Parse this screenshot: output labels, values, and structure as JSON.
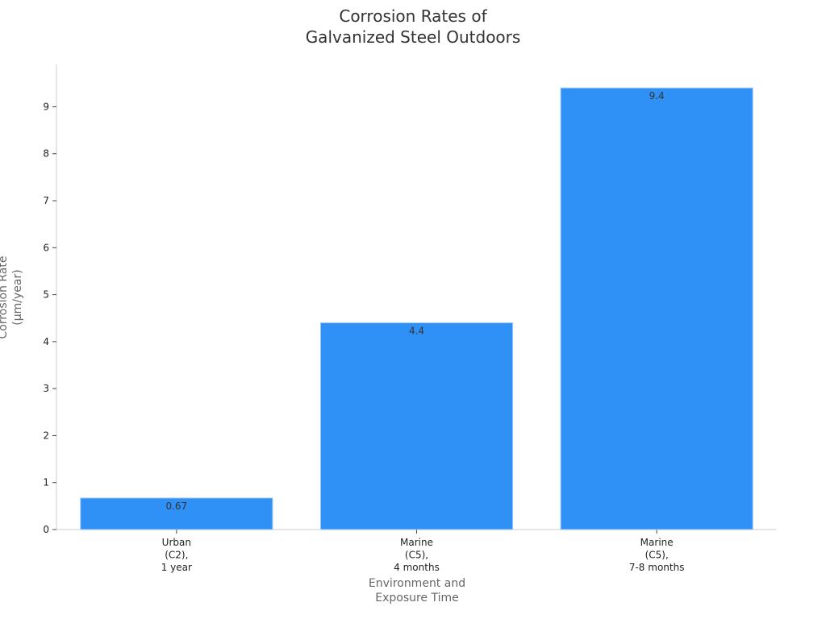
{
  "chart_data": {
    "type": "bar",
    "title": "Corrosion Rates of\nGalvanized Steel Outdoors",
    "xlabel": "Environment and\nExposure Time",
    "ylabel": "Corrosion Rate\n(µm/year)",
    "categories": [
      "Urban\n(C2),\n1 year",
      "Marine\n(C5),\n4 months",
      "Marine\n(C5),\n7-8 months"
    ],
    "values": [
      0.67,
      4.4,
      9.4
    ],
    "color": "#2f91f6",
    "ylim": [
      0,
      9.9
    ],
    "yticks": [
      0,
      1,
      2,
      3,
      4,
      5,
      6,
      7,
      8,
      9
    ],
    "grid": false
  }
}
